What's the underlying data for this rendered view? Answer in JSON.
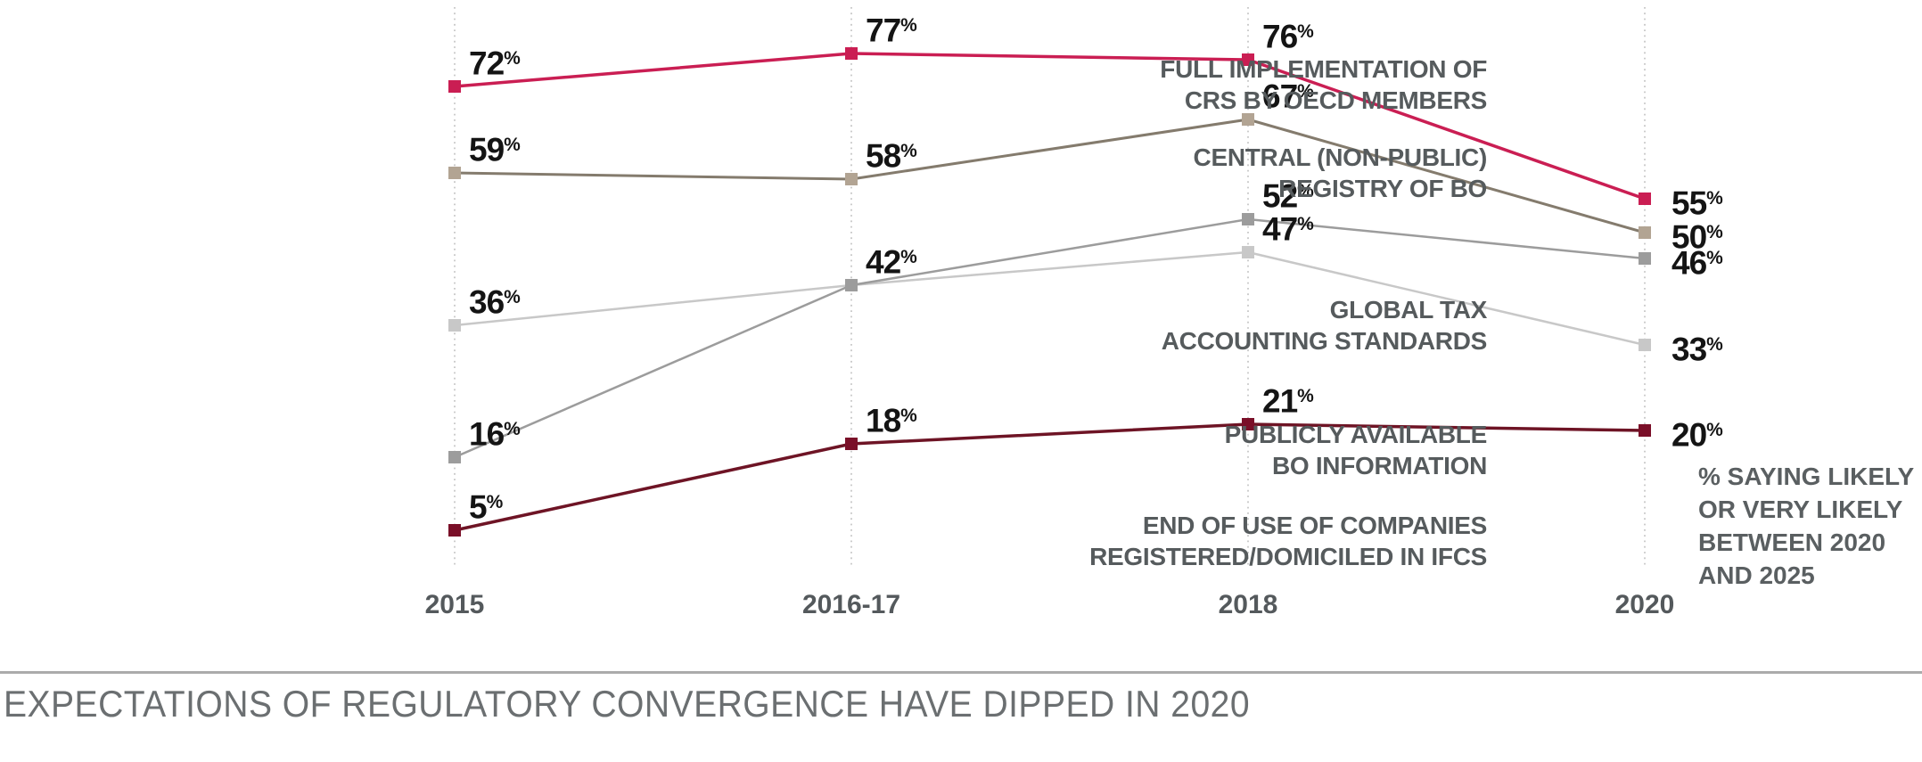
{
  "chart_data": {
    "type": "line",
    "title": "EXPECTATIONS OF REGULATORY CONVERGENCE HAVE DIPPED IN 2020",
    "categories": [
      "2015",
      "2016-17",
      "2018",
      "2020"
    ],
    "ylim": [
      0,
      85
    ],
    "grid": "vertical-dotted-per-category",
    "legend_position": "left-of-first-point",
    "note_lines": [
      "% SAYING LIKELY",
      "OR VERY LIKELY",
      "BETWEEN 2020",
      "AND 2025"
    ],
    "note": "% SAYING LIKELY OR VERY LIKELY BETWEEN 2020 AND 2025",
    "series": [
      {
        "name": "FULL IMPLEMENTATION OF CRS BY OECD MEMBERS",
        "label_lines": [
          "FULL IMPLEMENTATION OF",
          "CRS BY OECD MEMBERS"
        ],
        "values": [
          72,
          77,
          76,
          55
        ],
        "labels": [
          "72%",
          "77%",
          "76%",
          "55%"
        ],
        "label_visibility": [
          true,
          true,
          true,
          true
        ],
        "color": "#ca1e53",
        "marker_color": "#ca1e53",
        "line_width": 3.5,
        "label_dy": -2
      },
      {
        "name": "CENTRAL (NON-PUBLIC) REGISTRY OF BO",
        "label_lines": [
          "CENTRAL (NON-PUBLIC)",
          "REGISTRY OF BO"
        ],
        "values": [
          59,
          58,
          67,
          50
        ],
        "labels": [
          "59%",
          "58%",
          "67%",
          "50%"
        ],
        "label_visibility": [
          true,
          true,
          true,
          true
        ],
        "color": "#847b6d",
        "marker_color": "#b2a493",
        "line_width": 3,
        "label_dy": 0
      },
      {
        "name": "GLOBAL TAX ACCOUNTING STANDARDS",
        "label_lines": [
          "GLOBAL TAX",
          "ACCOUNTING STANDARDS"
        ],
        "values": [
          36,
          42,
          47,
          33
        ],
        "labels": [
          "36%",
          "42%",
          "47%",
          "33%"
        ],
        "label_visibility": [
          true,
          true,
          true,
          true
        ],
        "color": "#c8c8c8",
        "marker_color": "#c8c8c8",
        "line_width": 2.5,
        "label_dy": 0
      },
      {
        "name": "PUBLICLY AVAILABLE BO INFORMATION",
        "label_lines": [
          "PUBLICLY AVAILABLE",
          "BO INFORMATION"
        ],
        "values": [
          16,
          42,
          52,
          46
        ],
        "labels": [
          "16%",
          "42%",
          "52%",
          "46%"
        ],
        "label_visibility": [
          true,
          false,
          true,
          true
        ],
        "color": "#9c9c9c",
        "marker_color": "#9c9c9c",
        "line_width": 2.5,
        "label_dy": -8
      },
      {
        "name": "END OF USE OF COMPANIES REGISTERED/DOMICILED IN IFCS",
        "label_lines": [
          "END OF USE OF COMPANIES",
          "REGISTERED/DOMICILED IN IFCS"
        ],
        "values": [
          5,
          18,
          21,
          20
        ],
        "labels": [
          "5%",
          "18%",
          "21%",
          "20%"
        ],
        "label_visibility": [
          true,
          true,
          true,
          true
        ],
        "color": "#6e1425",
        "marker_color": "#7a0f28",
        "line_width": 3.5,
        "label_dy": 12
      }
    ]
  }
}
